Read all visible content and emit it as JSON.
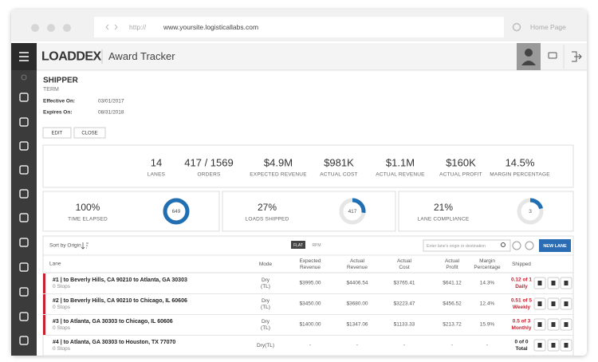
{
  "browser": {
    "protocol": "http://",
    "url": "www.yoursite.logisticallabs.com",
    "home": "Home Page"
  },
  "header": {
    "logo": "LOADDEX",
    "title": "Award Tracker"
  },
  "award": {
    "name": "SHIPPER",
    "subtitle": "TERM",
    "effective_label": "Effective On:",
    "effective": "03/01/2017",
    "expires_label": "Expires On:",
    "expires": "08/31/2018",
    "buttons": [
      "EDIT",
      "CLOSE"
    ]
  },
  "stats": [
    {
      "value": "14",
      "label": "LANES"
    },
    {
      "value": "417 / 1569",
      "label": "ORDERS"
    },
    {
      "value": "$4.9M",
      "label": "EXPECTED REVENUE"
    },
    {
      "value": "$981K",
      "label": "ACTUAL COST"
    },
    {
      "value": "$1.1M",
      "label": "ACTUAL REVENUE"
    },
    {
      "value": "$160K",
      "label": "ACTUAL PROFIT"
    },
    {
      "value": "14.5%",
      "label": "MARGIN PERCENTAGE"
    }
  ],
  "cards": [
    {
      "percent": 100,
      "percent_label": "100%",
      "label": "TIME ELAPSED",
      "count": 649
    },
    {
      "percent": 27,
      "percent_label": "27%",
      "label": "LOADS SHIPPED",
      "count": 417
    },
    {
      "percent": 21,
      "percent_label": "21%",
      "label": "LANE COMPLIANCE",
      "count": 3
    }
  ],
  "toolbar": {
    "sort": "Sort by Origin",
    "views": [
      "FLAT",
      "RPM"
    ],
    "search_placeholder": "Enter lane's origin or destination",
    "new_lane": "NEW LANE"
  },
  "table": {
    "columns": [
      "Lane",
      "Mode",
      "Expected Revenue",
      "Actual Revenue",
      "Actual Cost",
      "Actual Profit",
      "Margin Percentage",
      "Shipped"
    ],
    "rows": [
      {
        "lane": "#1 | to Beverly Hills, CA 90210 to Atlanta, GA 30303",
        "stops": "0 Stops",
        "mode": "Dry (TL)",
        "expected_revenue": "$3995.00",
        "actual_revenue": "$4406.54",
        "actual_cost": "$3765.41",
        "actual_profit": "$641.12",
        "margin": "14.3%",
        "shipped": "0.12 of 1",
        "period": "Daily"
      },
      {
        "lane": "#2 | to Beverly Hills, CA 90210 to Chicago, IL 60606",
        "stops": "0 Stops",
        "mode": "Dry (TL)",
        "expected_revenue": "$3450.00",
        "actual_revenue": "$3680.00",
        "actual_cost": "$3223.47",
        "actual_profit": "$456.52",
        "margin": "12.4%",
        "shipped": "0.51 of 5",
        "period": "Weekly"
      },
      {
        "lane": "#3 | to Atlanta, GA 30303 to Chicago, IL 60606",
        "stops": "0 Stops",
        "mode": "Dry (TL)",
        "expected_revenue": "$1400.00",
        "actual_revenue": "$1347.06",
        "actual_cost": "$1133.33",
        "actual_profit": "$213.72",
        "margin": "15.9%",
        "shipped": "0.5 of 3",
        "period": "Monthly"
      },
      {
        "lane": "#4 | to Atlanta, GA 30303 to Houston, TX 77070",
        "stops": "0 Stops",
        "mode": "Dry(TL)",
        "expected_revenue": "-",
        "actual_revenue": "-",
        "actual_cost": "-",
        "actual_profit": "-",
        "margin": "-",
        "shipped": "0 of 0",
        "period": "Total"
      }
    ]
  }
}
